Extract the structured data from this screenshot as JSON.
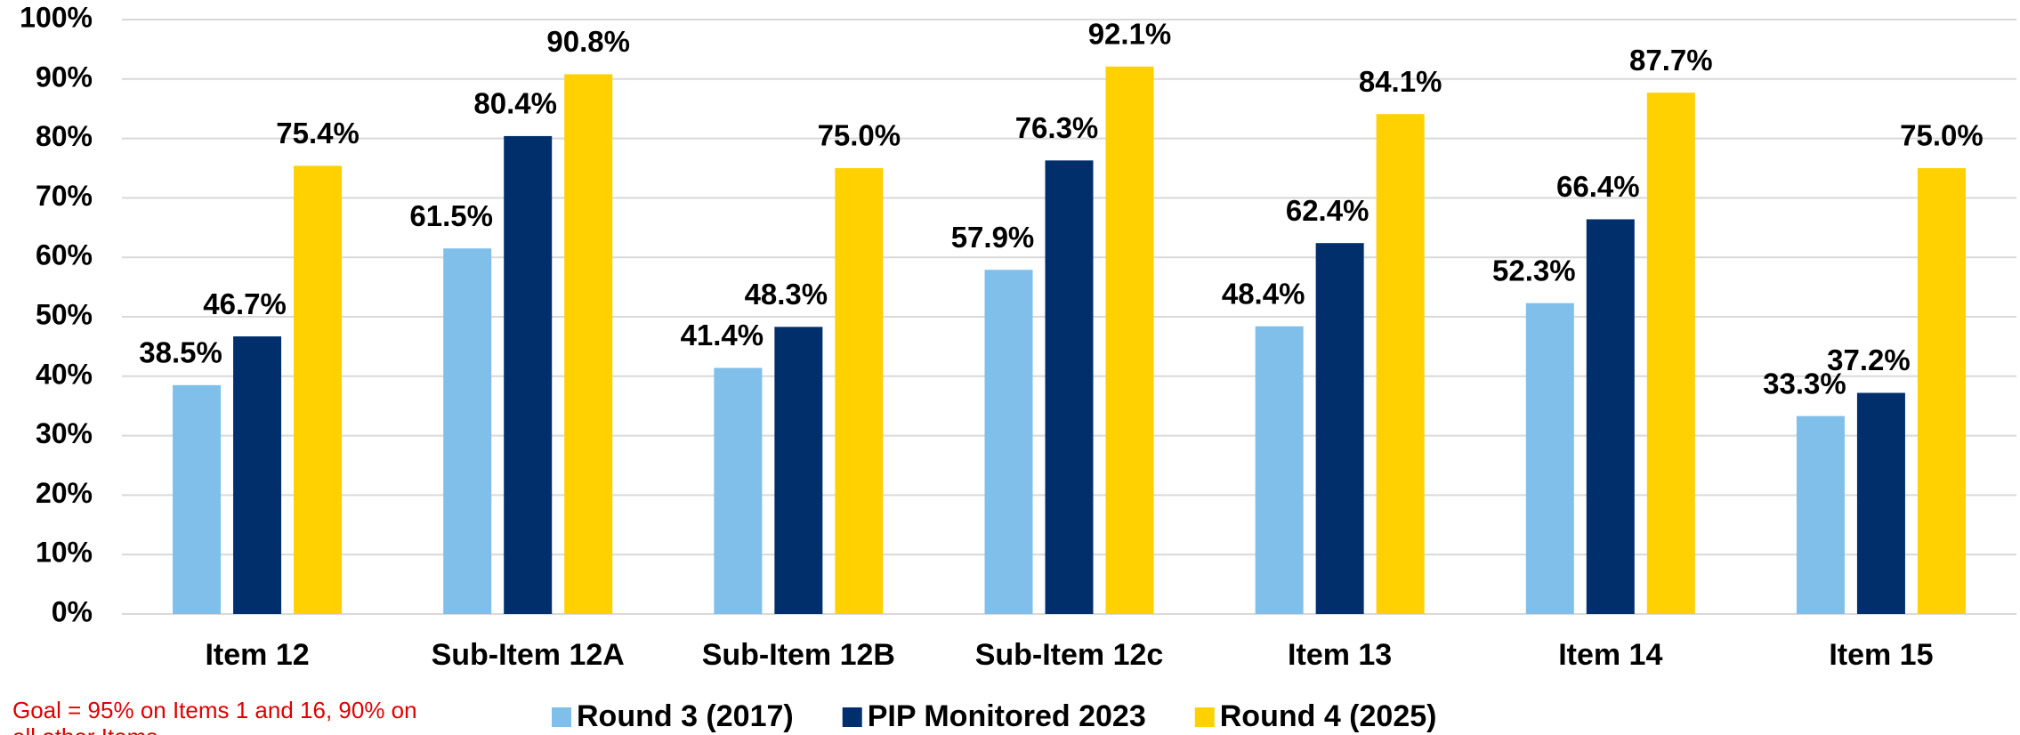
{
  "chart_data": {
    "type": "bar",
    "categories": [
      "Item 12",
      "Sub-Item 12A",
      "Sub-Item 12B",
      "Sub-Item 12c",
      "Item 13",
      "Item 14",
      "Item 15"
    ],
    "series": [
      {
        "name": "Round 3 (2017)",
        "color": "#7fbfea",
        "values": [
          38.5,
          61.5,
          41.4,
          57.9,
          48.4,
          52.3,
          33.3
        ],
        "value_labels": [
          "38.5%",
          "61.5%",
          "41.4%",
          "57.9%",
          "48.4%",
          "52.3%",
          "33.3%"
        ]
      },
      {
        "name": "PIP Monitored 2023",
        "color": "#002f6c",
        "values": [
          46.7,
          80.4,
          48.3,
          76.3,
          62.4,
          66.4,
          37.2
        ],
        "value_labels": [
          "46.7%",
          "80.4%",
          "48.3%",
          "76.3%",
          "62.4%",
          "66.4%",
          "37.2%"
        ]
      },
      {
        "name": "Round 4 (2025)",
        "color": "#ffd100",
        "values": [
          75.4,
          90.8,
          75.0,
          92.1,
          84.1,
          87.7,
          75.0
        ],
        "value_labels": [
          "75.4%",
          "90.8%",
          "75.0%",
          "92.1%",
          "84.1%",
          "87.7%",
          "75.0%"
        ]
      }
    ],
    "ylim": [
      0,
      100
    ],
    "yticks": [
      {
        "value": 0,
        "label": "0%"
      },
      {
        "value": 10,
        "label": "10%"
      },
      {
        "value": 20,
        "label": "20%"
      },
      {
        "value": 30,
        "label": "30%"
      },
      {
        "value": 40,
        "label": "40%"
      },
      {
        "value": 50,
        "label": "50%"
      },
      {
        "value": 60,
        "label": "60%"
      },
      {
        "value": 70,
        "label": "70%"
      },
      {
        "value": 80,
        "label": "80%"
      },
      {
        "value": 90,
        "label": "90%"
      },
      {
        "value": 100,
        "label": "100%"
      }
    ],
    "grid": true,
    "legend": "bottom",
    "annotations": [
      "Goal = 95% on Items 1 and 16, 90% on",
      "all other Items"
    ]
  }
}
